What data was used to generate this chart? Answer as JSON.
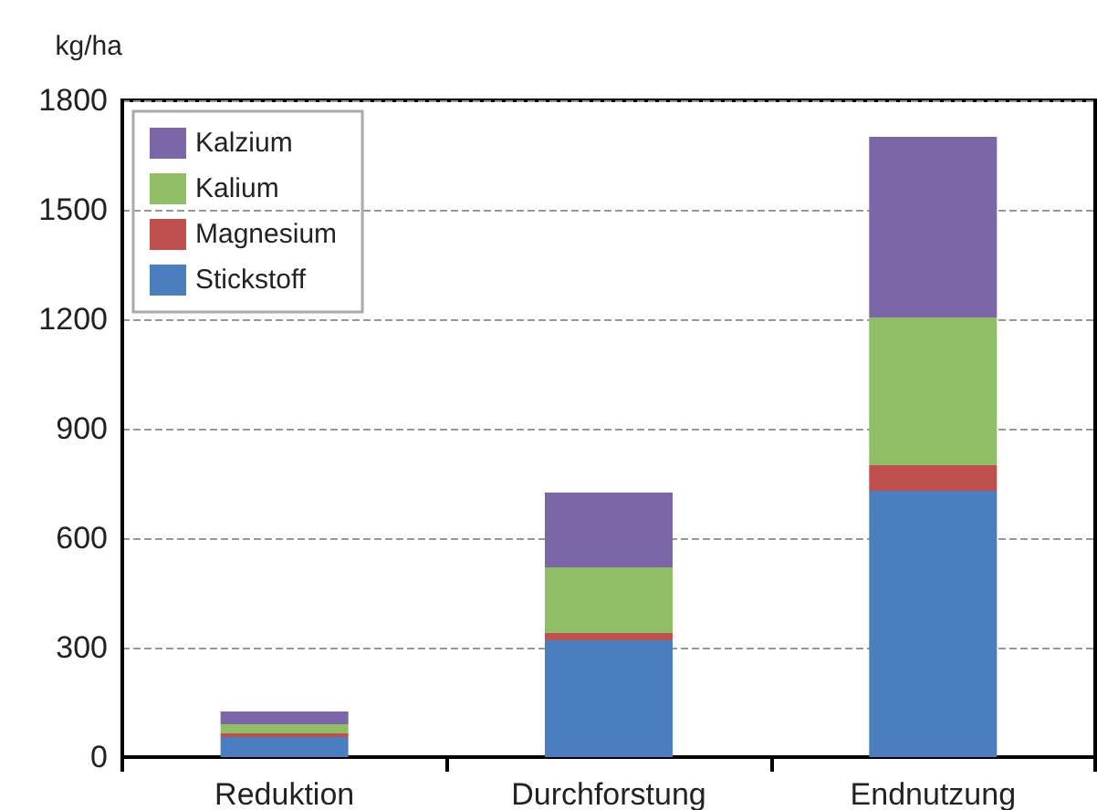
{
  "chart_data": {
    "type": "bar",
    "ylabel": "kg/ha",
    "categories": [
      "Reduktion",
      "Durchforstung",
      "Endnutzung"
    ],
    "stacked": true,
    "series": [
      {
        "name": "Stickstoff",
        "color": "#4a7ebf",
        "values": [
          55,
          320,
          730
        ]
      },
      {
        "name": "Magnesium",
        "color": "#c0504d",
        "values": [
          10,
          20,
          70
        ]
      },
      {
        "name": "Kalium",
        "color": "#8fbe67",
        "values": [
          25,
          180,
          405
        ]
      },
      {
        "name": "Kalzium",
        "color": "#7b66a8",
        "values": [
          35,
          205,
          495
        ]
      }
    ],
    "ylim": [
      0,
      1800
    ],
    "yticks": [
      0,
      300,
      600,
      900,
      1200,
      1500,
      1800
    ],
    "grid": "y",
    "legend": "top left"
  }
}
